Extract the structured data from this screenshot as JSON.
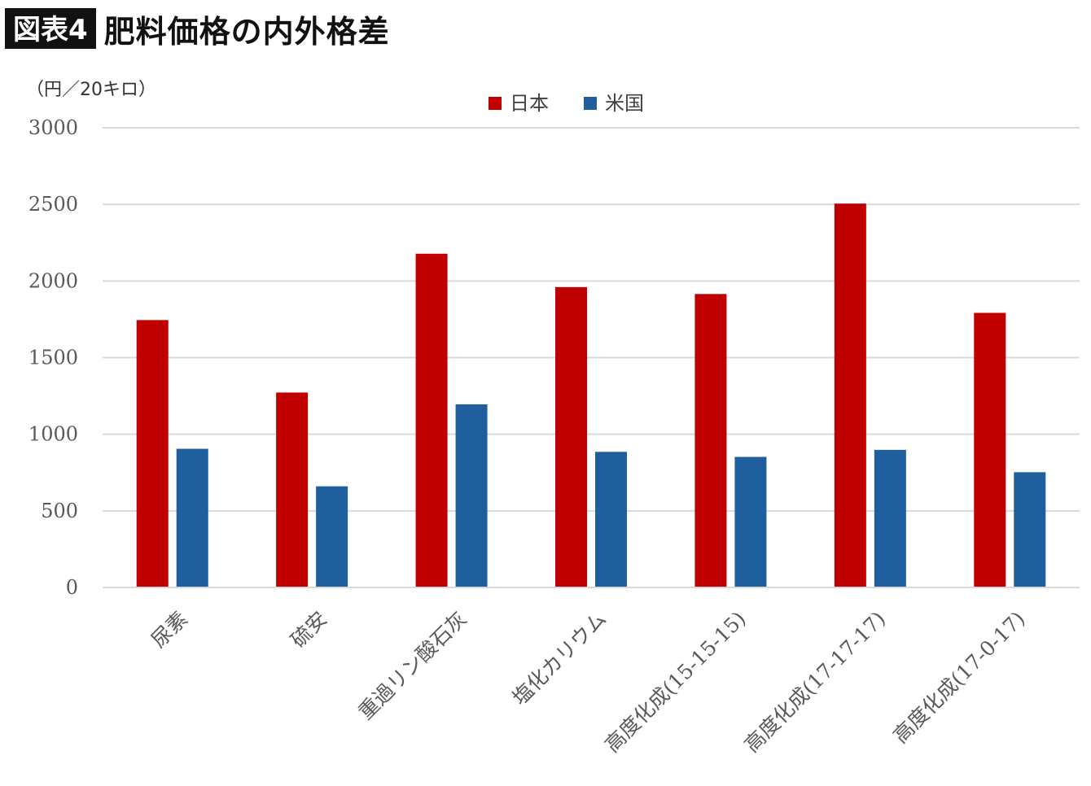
{
  "header": {
    "tag": "図表4",
    "title": "肥料価格の内外格差"
  },
  "unit_label": "（円／20キロ）",
  "chart_data": {
    "type": "bar",
    "categories": [
      "尿素",
      "硫安",
      "重過リン酸石灰",
      "塩化カリウム",
      "高度化成(15-15-15)",
      "高度化成(17-17-17)",
      "高度化成(17-0-17)"
    ],
    "series": [
      {
        "name": "日本",
        "color": "#c00000",
        "values": [
          1745,
          1272,
          2178,
          1960,
          1915,
          2505,
          1792
        ]
      },
      {
        "name": "米国",
        "color": "#1f5f9e",
        "values": [
          905,
          660,
          1195,
          885,
          852,
          898,
          752
        ]
      }
    ],
    "ylim": [
      0,
      3000
    ],
    "yticks": [
      0,
      500,
      1000,
      1500,
      2000,
      2500,
      3000
    ],
    "grid": true,
    "legend_position": "top-center"
  }
}
